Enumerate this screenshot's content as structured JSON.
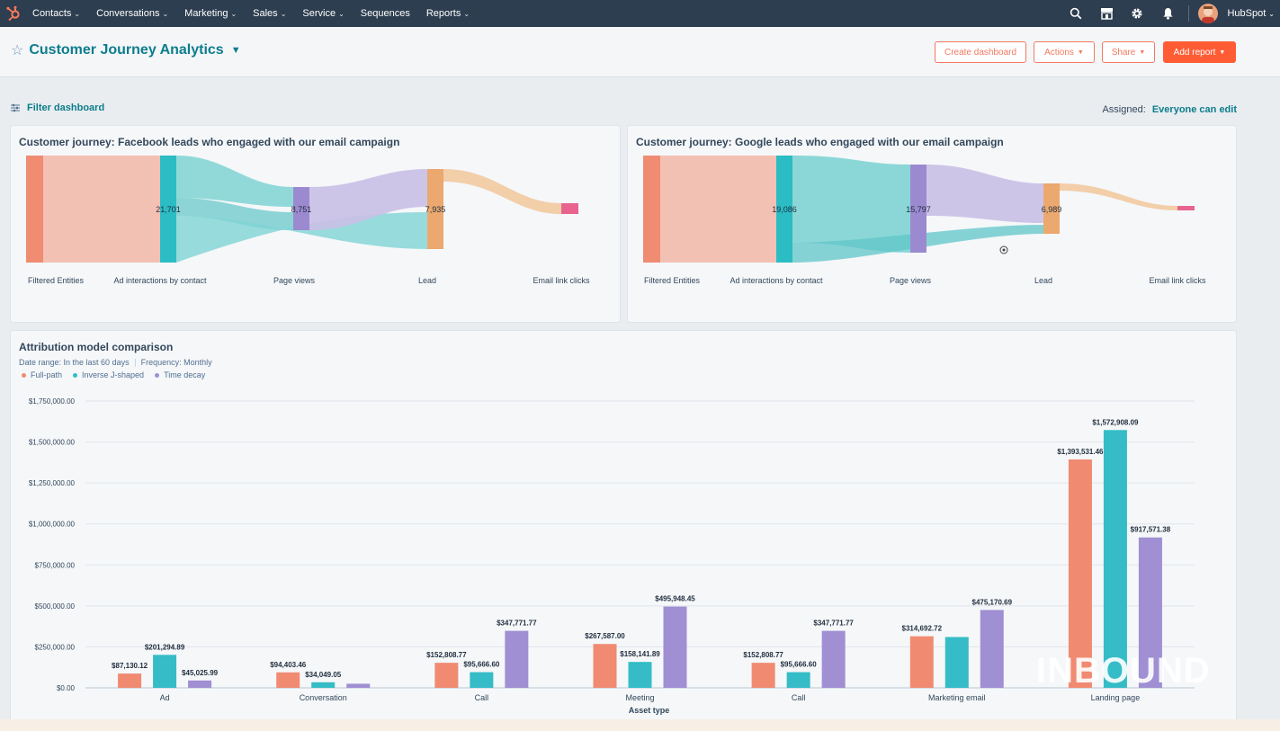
{
  "nav": {
    "items": [
      {
        "label": "Contacts",
        "caret": true
      },
      {
        "label": "Conversations",
        "caret": true
      },
      {
        "label": "Marketing",
        "caret": true
      },
      {
        "label": "Sales",
        "caret": true
      },
      {
        "label": "Service",
        "caret": true
      },
      {
        "label": "Sequences",
        "caret": false
      },
      {
        "label": "Reports",
        "caret": true
      }
    ],
    "account_label": "HubSpot"
  },
  "header": {
    "title": "Customer Journey Analytics",
    "create_dashboard": "Create dashboard",
    "actions": "Actions",
    "share": "Share",
    "add_report": "Add report"
  },
  "filter": {
    "label": "Filter dashboard",
    "assigned_label": "Assigned:",
    "assigned_value": "Everyone can edit"
  },
  "sankey_facebook": {
    "title": "Customer journey: Facebook leads who engaged with our email campaign",
    "stages": [
      "Filtered Entities",
      "Ad interactions by contact",
      "Page views",
      "Lead",
      "Email link clicks"
    ],
    "values": [
      "21,701",
      "8,751",
      "7,935"
    ]
  },
  "sankey_google": {
    "title": "Customer journey: Google leads who engaged with our email campaign",
    "stages": [
      "Filtered Entities",
      "Ad interactions by contact",
      "Page views",
      "Lead",
      "Email link clicks"
    ],
    "values": [
      "19,086",
      "15,797",
      "6,989"
    ]
  },
  "chart_data": {
    "type": "bar",
    "title": "Attribution model comparison",
    "date_range": "Date range: In the last 60 days",
    "frequency": "Frequency: Monthly",
    "xlabel": "Asset type",
    "ylabel": "",
    "ylim": [
      0,
      1750000
    ],
    "yticks": [
      "$0.00",
      "$250,000.00",
      "$500,000.00",
      "$750,000.00",
      "$1,000,000.00",
      "$1,250,000.00",
      "$1,500,000.00",
      "$1,750,000.00"
    ],
    "categories": [
      "Ad",
      "Conversation",
      "Call",
      "Meeting",
      "Call",
      "Marketing email",
      "Landing page"
    ],
    "series": [
      {
        "name": "Full-path",
        "color": "#f08b72",
        "values": [
          87130.12,
          94403.46,
          152808.77,
          267587.0,
          152808.77,
          314692.72,
          1393531.46
        ],
        "labels": [
          "$87,130.12",
          "$94,403.46",
          "$152,808.77",
          "$267,587.00",
          "$152,808.77",
          "$314,692.72",
          "$1,393,531.46"
        ]
      },
      {
        "name": "Inverse J-shaped",
        "color": "#35bcc6",
        "values": [
          201294.89,
          34049.05,
          95666.6,
          158141.89,
          95666.6,
          310000,
          1572908.09
        ],
        "labels": [
          "$201,294.89",
          "$34,049.05",
          "$95,666.60",
          "$158,141.89",
          "$95,666.60",
          "",
          "$1,572,908.09"
        ]
      },
      {
        "name": "Time decay",
        "color": "#a08fd2",
        "values": [
          45025.99,
          25000,
          347771.77,
          495948.45,
          347771.77,
          475170.69,
          917571.38
        ],
        "labels": [
          "$45,025.99",
          "",
          "$347,771.77",
          "$495,948.45",
          "$347,771.77",
          "$475,170.69",
          "$917,571.38"
        ]
      }
    ]
  },
  "watermark": "INBOUND"
}
